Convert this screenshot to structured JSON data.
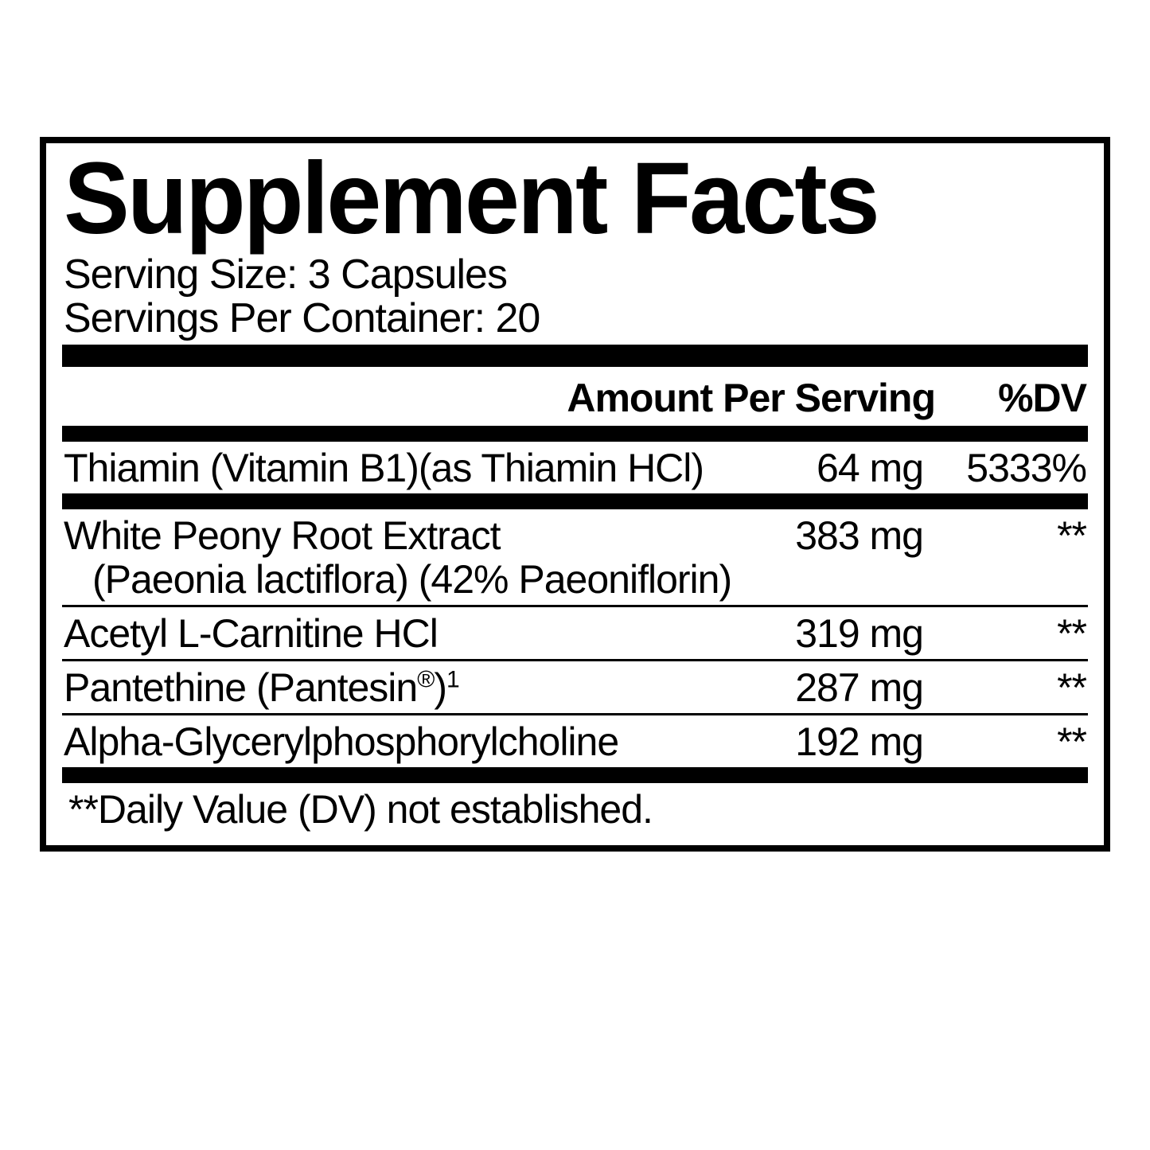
{
  "title": "Supplement Facts",
  "serving_size_label": "Serving Size: 3 Capsules",
  "servings_per_container_label": "Servings Per Container: 20",
  "header": {
    "amount": "Amount Per Serving",
    "dv": "%DV"
  },
  "rows": [
    {
      "name_html": "Thiamin (Vitamin B1)(as Thiamin HCl)",
      "amount": "64 mg",
      "dv": "5333%",
      "rule_after": "bar"
    },
    {
      "name_html": "White Peony Root Extract<span class=\"indent\">(Paeonia lactiflora) (42% Paeoniflorin)</span>",
      "amount": "383 mg",
      "dv": "**",
      "rule_after": "thin"
    },
    {
      "name_html": "Acetyl L-Carnitine HCl",
      "amount": "319 mg",
      "dv": "**",
      "rule_after": "thin"
    },
    {
      "name_html": "Pantethine (Pantesin<sup style=\"font-size:60%\">®</sup>)<sup style=\"font-size:60%\">1</sup>",
      "amount": "287 mg",
      "dv": "**",
      "rule_after": "thin"
    },
    {
      "name_html": "Alpha-Glycerylphosphorylcholine",
      "amount": "192 mg",
      "dv": "**",
      "rule_after": "bar"
    }
  ],
  "footnote": "**Daily Value (DV) not established.",
  "colors": {
    "background": "#ffffff",
    "ink": "#000000"
  }
}
